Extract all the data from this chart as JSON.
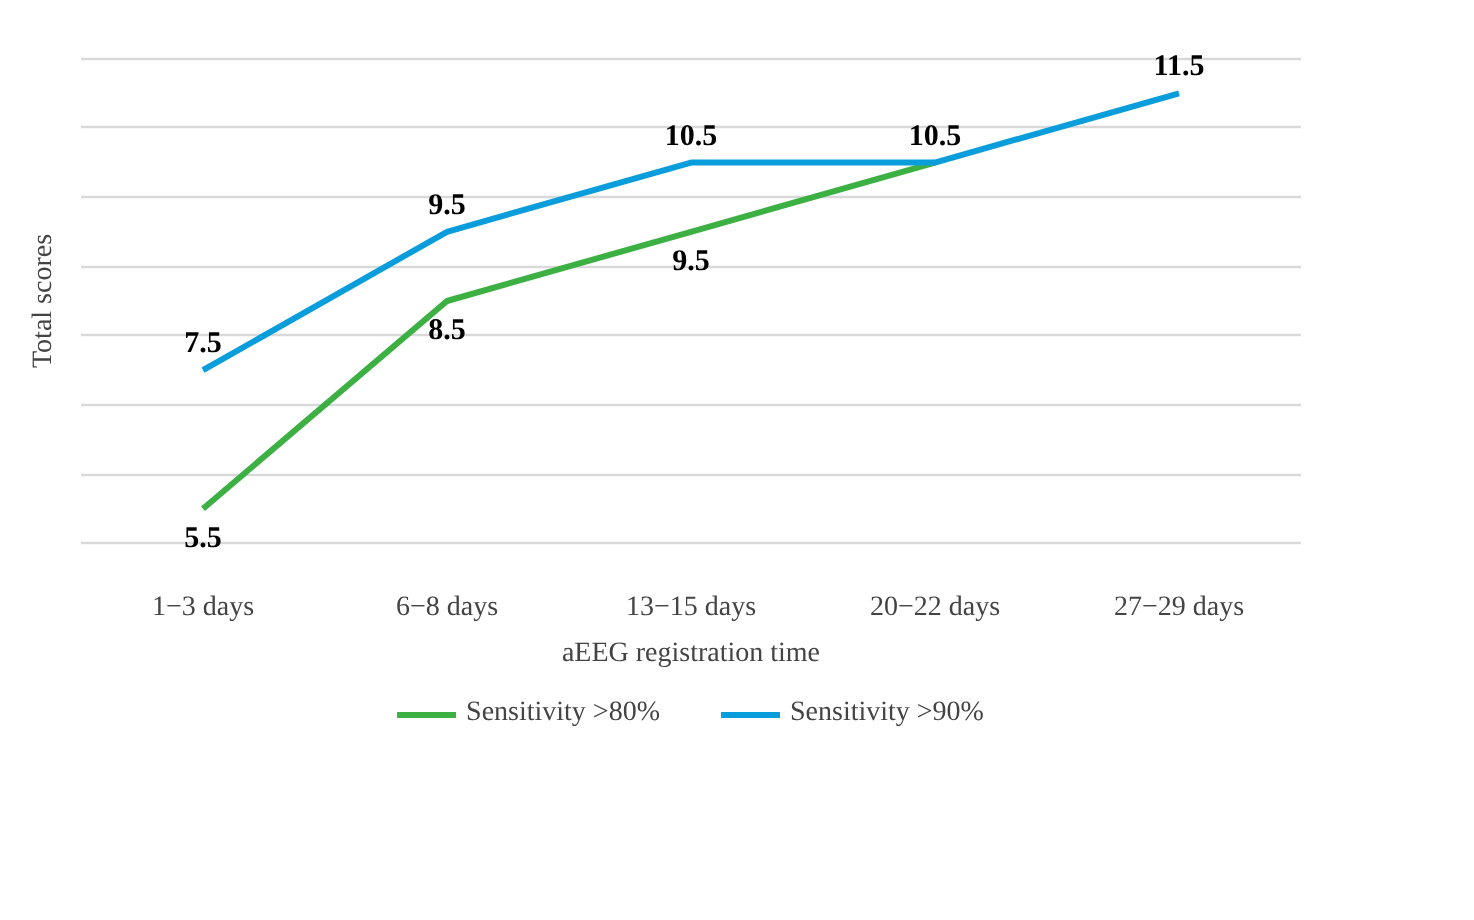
{
  "chart_data": {
    "type": "line",
    "xlabel": "aEEG registration time",
    "ylabel": "Total scores",
    "categories": [
      "1−3 days",
      "6−8 days",
      "13−15 days",
      "20−22 days",
      "27−29 days"
    ],
    "series": [
      {
        "name": "Sensitivity >80%",
        "color": "#3cb043",
        "values": [
          5.5,
          8.5,
          9.5,
          10.5,
          null
        ],
        "value_labels": [
          "5.5",
          "8.5",
          "9.5",
          null,
          null
        ]
      },
      {
        "name": "Sensitivity >90%",
        "color": "#0a9ddb",
        "values": [
          7.5,
          9.5,
          10.5,
          10.5,
          11.5
        ],
        "value_labels": [
          "7.5",
          "9.5",
          "10.5",
          "10.5",
          "11.5"
        ]
      }
    ],
    "tick_labels": "x",
    "grid": "y",
    "legend": "bottom",
    "line_style": "solid"
  }
}
